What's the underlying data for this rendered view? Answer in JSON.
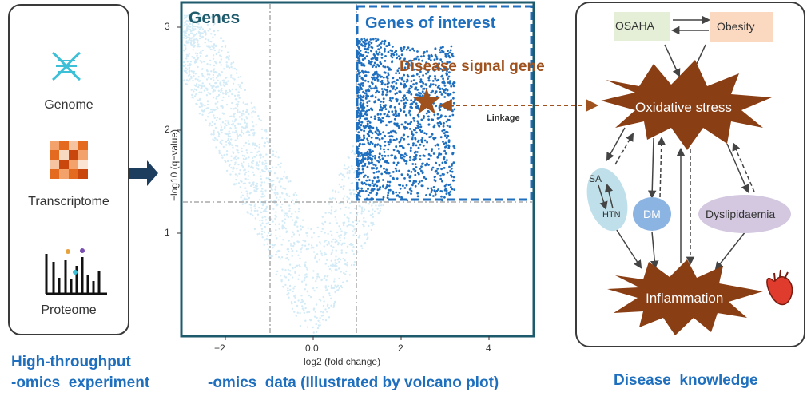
{
  "left_panel": {
    "items": [
      {
        "label": "Genome",
        "icon": "dna-icon"
      },
      {
        "label": "Transcriptome",
        "icon": "heatmap-icon"
      },
      {
        "label": "Proteome",
        "icon": "spectrum-icon"
      }
    ],
    "caption_line1": "High-throughput",
    "caption_line2": "-omics  experiment"
  },
  "volcano": {
    "genes_label": "Genes",
    "interest_label": "Genes of interest",
    "signal_label": "Disease signal gene",
    "linkage_label": "Linkage",
    "ylabel": "−log10 (q−value)",
    "xlabel": "log2 (fold change)",
    "y_ticks": [
      "3",
      "2",
      "1"
    ],
    "x_ticks": [
      "−2",
      "0.0",
      "2",
      "4"
    ],
    "caption": "-omics  data (Illustrated by volcano plot)",
    "colors": {
      "background_points": "#d3ebf6",
      "interest_points": "#1f6fbf",
      "frame": "#1d5a6b",
      "star": "#a0521e"
    }
  },
  "knowledge": {
    "osaha": "OSAHA",
    "obesity": "Obesity",
    "oxidative": "Oxidative stress",
    "sa": "SA",
    "htn": "HTN",
    "dm": "DM",
    "dyslipidaemia": "Dyslipidaemia",
    "inflammation": "Inflammation",
    "caption": "Disease  knowledge",
    "colors": {
      "burst": "#8a3e14",
      "osaha_box": "#e5efd8",
      "obesity_box": "#fbd8c0",
      "sa_oval": "#bfe0ea",
      "dm_oval": "#8cb4e2",
      "dys_oval": "#d3c8e0"
    }
  }
}
